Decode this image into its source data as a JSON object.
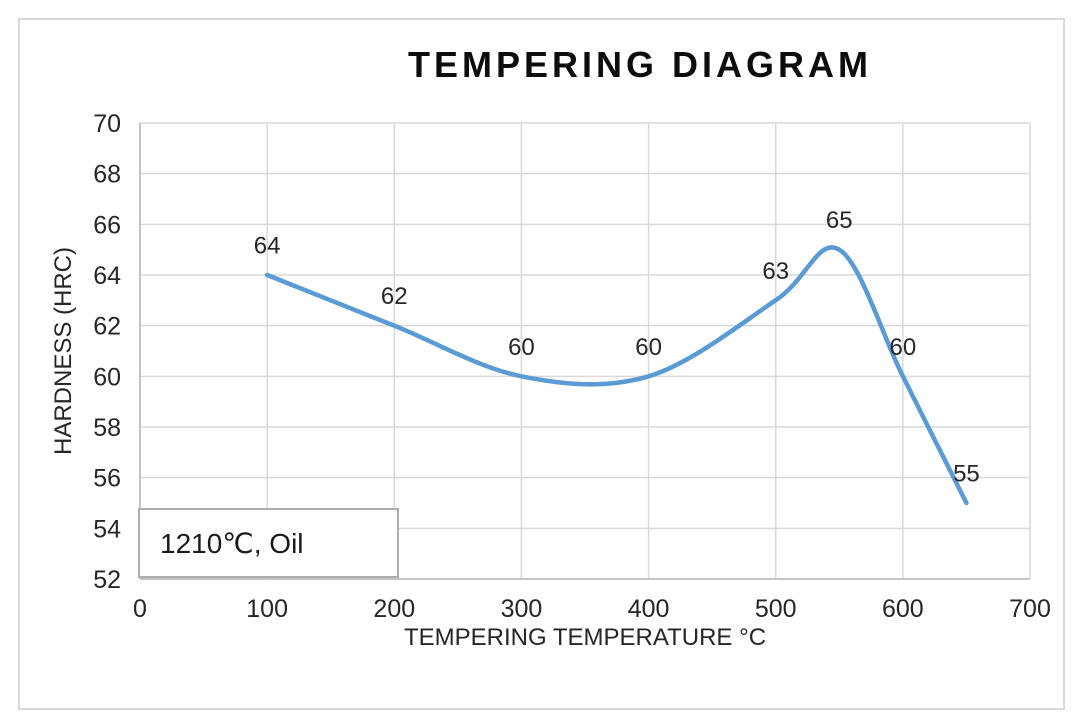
{
  "chart_data": {
    "type": "line",
    "title": "TEMPERING DIAGRAM",
    "xlabel": "TEMPERING TEMPERATURE °C",
    "ylabel": "HARDNESS (HRC)",
    "x": [
      100,
      200,
      300,
      400,
      500,
      550,
      600,
      650
    ],
    "y": [
      64,
      62,
      60,
      60,
      63,
      65,
      60,
      55
    ],
    "point_labels": [
      "64",
      "62",
      "60",
      "60",
      "63",
      "65",
      "60",
      "55"
    ],
    "xlim": [
      0,
      700
    ],
    "ylim": [
      52,
      70
    ],
    "xticks": [
      0,
      100,
      200,
      300,
      400,
      500,
      600,
      700
    ],
    "yticks": [
      52,
      54,
      56,
      58,
      60,
      62,
      64,
      66,
      68,
      70
    ],
    "grid": true,
    "smooth": true,
    "legend": "none",
    "annotation": "1210℃, Oil",
    "colors": {
      "line": "#5B9BD5",
      "grid": "#D9D9D9",
      "axis": "#BFBFBF",
      "frame": "#D9D9D9",
      "annotation_border": "#ACACAC",
      "text": "#262626",
      "title": "#0d0d0d"
    }
  }
}
